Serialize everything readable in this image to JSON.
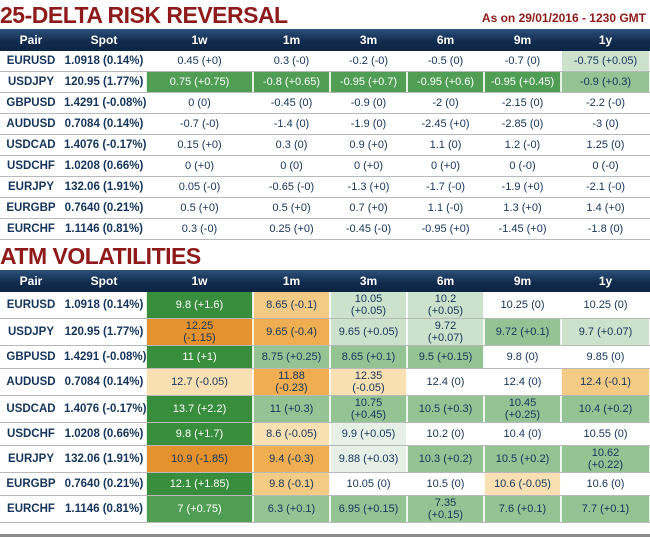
{
  "header": {
    "title_rr": "25-DELTA RISK REVERSAL",
    "title_atm": "ATM VOLATILITIES",
    "as_of": "As on 29/01/2016 - 1230 GMT"
  },
  "colors": {
    "title_red": "#8e1a1a",
    "header_navy": "#122c4f",
    "text_navy": "#15355c",
    "green_strong": "#388e3c",
    "green_medium": "#4f9e53",
    "green_soft": "#94c494",
    "green_light": "#cce2cc",
    "green_faint": "#e6f0e6",
    "orange_strong": "#e3922e",
    "orange_medium": "#efae52",
    "orange_soft": "#f3cb84",
    "orange_light": "#f8e0b2",
    "gridline_gray": "#b9b9b9"
  },
  "chart_data": [
    {
      "type": "table",
      "title": "25-DELTA RISK REVERSAL",
      "columns": [
        "Pair",
        "Spot",
        "1w",
        "1m",
        "3m",
        "6m",
        "9m",
        "1y"
      ],
      "rows": [
        {
          "pair": "EURUSD",
          "spot": "1.0918 (0.14%)",
          "cells": [
            {
              "v": "0.45 (+0)",
              "c": "w"
            },
            {
              "v": "0.3 (-0)",
              "c": "w"
            },
            {
              "v": "-0.2 (-0)",
              "c": "w"
            },
            {
              "v": "-0.5 (0)",
              "c": "w"
            },
            {
              "v": "-0.7 (0)",
              "c": "w"
            },
            {
              "v": "-0.75 (+0.05)",
              "c": "g4"
            }
          ]
        },
        {
          "pair": "USDJPY",
          "spot": "120.95 (1.77%)",
          "cells": [
            {
              "v": "0.75 (+0.75)",
              "c": "g2"
            },
            {
              "v": "-0.8 (+0.65)",
              "c": "g2"
            },
            {
              "v": "-0.95 (+0.7)",
              "c": "g2"
            },
            {
              "v": "-0.95 (+0.6)",
              "c": "g2"
            },
            {
              "v": "-0.95 (+0.45)",
              "c": "g2"
            },
            {
              "v": "-0.9 (+0.3)",
              "c": "g3"
            }
          ]
        },
        {
          "pair": "GBPUSD",
          "spot": "1.4291 (-0.08%)",
          "cells": [
            {
              "v": "0 (0)",
              "c": "w"
            },
            {
              "v": "-0.45 (0)",
              "c": "w"
            },
            {
              "v": "-0.9 (0)",
              "c": "w"
            },
            {
              "v": "-2 (0)",
              "c": "w"
            },
            {
              "v": "-2.15 (0)",
              "c": "w"
            },
            {
              "v": "-2.2 (-0)",
              "c": "w"
            }
          ]
        },
        {
          "pair": "AUDUSD",
          "spot": "0.7084 (0.14%)",
          "cells": [
            {
              "v": "-0.7 (-0)",
              "c": "w"
            },
            {
              "v": "-1.4 (0)",
              "c": "w"
            },
            {
              "v": "-1.9 (0)",
              "c": "w"
            },
            {
              "v": "-2.45 (+0)",
              "c": "w"
            },
            {
              "v": "-2.85 (0)",
              "c": "w"
            },
            {
              "v": "-3 (0)",
              "c": "w"
            }
          ]
        },
        {
          "pair": "USDCAD",
          "spot": "1.4076 (-0.17%)",
          "cells": [
            {
              "v": "0.15 (+0)",
              "c": "w"
            },
            {
              "v": "0.3 (0)",
              "c": "w"
            },
            {
              "v": "0.9 (+0)",
              "c": "w"
            },
            {
              "v": "1.1 (0)",
              "c": "w"
            },
            {
              "v": "1.2 (-0)",
              "c": "w"
            },
            {
              "v": "1.25 (0)",
              "c": "w"
            }
          ]
        },
        {
          "pair": "USDCHF",
          "spot": "1.0208 (0.66%)",
          "cells": [
            {
              "v": "0 (+0)",
              "c": "w"
            },
            {
              "v": "0 (0)",
              "c": "w"
            },
            {
              "v": "0 (+0)",
              "c": "w"
            },
            {
              "v": "0 (+0)",
              "c": "w"
            },
            {
              "v": "0 (-0)",
              "c": "w"
            },
            {
              "v": "0 (-0)",
              "c": "w"
            }
          ]
        },
        {
          "pair": "EURJPY",
          "spot": "132.06 (1.91%)",
          "cells": [
            {
              "v": "0.05 (-0)",
              "c": "w"
            },
            {
              "v": "-0.65 (-0)",
              "c": "w"
            },
            {
              "v": "-1.3 (+0)",
              "c": "w"
            },
            {
              "v": "-1.7 (-0)",
              "c": "w"
            },
            {
              "v": "-1.9 (+0)",
              "c": "w"
            },
            {
              "v": "-2.1 (-0)",
              "c": "w"
            }
          ]
        },
        {
          "pair": "EURGBP",
          "spot": "0.7640 (0.21%)",
          "cells": [
            {
              "v": "0.5 (+0)",
              "c": "w"
            },
            {
              "v": "0.5 (+0)",
              "c": "w"
            },
            {
              "v": "0.7 (+0)",
              "c": "w"
            },
            {
              "v": "1.1 (-0)",
              "c": "w"
            },
            {
              "v": "1.3 (+0)",
              "c": "w"
            },
            {
              "v": "1.4 (+0)",
              "c": "w"
            }
          ]
        },
        {
          "pair": "EURCHF",
          "spot": "1.1146 (0.81%)",
          "cells": [
            {
              "v": "0.3 (-0)",
              "c": "w"
            },
            {
              "v": "0.25 (+0)",
              "c": "w"
            },
            {
              "v": "-0.45 (-0)",
              "c": "w"
            },
            {
              "v": "-0.95 (+0)",
              "c": "w"
            },
            {
              "v": "-1.45 (+0)",
              "c": "w"
            },
            {
              "v": "-1.8 (0)",
              "c": "w"
            }
          ]
        }
      ]
    },
    {
      "type": "table",
      "title": "ATM VOLATILITIES",
      "columns": [
        "Pair",
        "Spot",
        "1w",
        "1m",
        "3m",
        "6m",
        "9m",
        "1y"
      ],
      "rows": [
        {
          "pair": "EURUSD",
          "spot": "1.0918 (0.14%)",
          "cells": [
            {
              "v": "9.8 (+1.6)",
              "c": "g1"
            },
            {
              "v": "8.65 (-0.1)",
              "c": "o3"
            },
            {
              "v": "10.05\n(+0.05)",
              "c": "g4"
            },
            {
              "v": "10.2\n(+0.05)",
              "c": "g4"
            },
            {
              "v": "10.25 (0)",
              "c": "w"
            },
            {
              "v": "10.25 (0)",
              "c": "w"
            }
          ]
        },
        {
          "pair": "USDJPY",
          "spot": "120.95 (1.77%)",
          "cells": [
            {
              "v": "12.25\n(-1.15)",
              "c": "o1"
            },
            {
              "v": "9.65 (-0.4)",
              "c": "o2"
            },
            {
              "v": "9.65 (+0.05)",
              "c": "g4"
            },
            {
              "v": "9.72\n(+0.07)",
              "c": "g4"
            },
            {
              "v": "9.72 (+0.1)",
              "c": "g3"
            },
            {
              "v": "9.7 (+0.07)",
              "c": "g4"
            }
          ]
        },
        {
          "pair": "GBPUSD",
          "spot": "1.4291 (-0.08%)",
          "cells": [
            {
              "v": "11 (+1)",
              "c": "g1"
            },
            {
              "v": "8.75 (+0.25)",
              "c": "g3"
            },
            {
              "v": "8.65 (+0.1)",
              "c": "g3"
            },
            {
              "v": "9.5 (+0.15)",
              "c": "g3"
            },
            {
              "v": "9.8 (0)",
              "c": "w"
            },
            {
              "v": "9.85 (0)",
              "c": "w"
            }
          ]
        },
        {
          "pair": "AUDUSD",
          "spot": "0.7084 (0.14%)",
          "cells": [
            {
              "v": "12.7 (-0.05)",
              "c": "o4"
            },
            {
              "v": "11.88\n(-0.23)",
              "c": "o2"
            },
            {
              "v": "12.35\n(-0.05)",
              "c": "o4"
            },
            {
              "v": "12.4 (0)",
              "c": "w"
            },
            {
              "v": "12.4 (0)",
              "c": "w"
            },
            {
              "v": "12.4 (-0.1)",
              "c": "o3"
            }
          ]
        },
        {
          "pair": "USDCAD",
          "spot": "1.4076 (-0.17%)",
          "cells": [
            {
              "v": "13.7 (+2.2)",
              "c": "g1"
            },
            {
              "v": "11 (+0.3)",
              "c": "g3"
            },
            {
              "v": "10.75\n(+0.45)",
              "c": "g3"
            },
            {
              "v": "10.5 (+0.3)",
              "c": "g3"
            },
            {
              "v": "10.45\n(+0.25)",
              "c": "g3"
            },
            {
              "v": "10.4 (+0.2)",
              "c": "g3"
            }
          ]
        },
        {
          "pair": "USDCHF",
          "spot": "1.0208 (0.66%)",
          "cells": [
            {
              "v": "9.8 (+1.7)",
              "c": "g1"
            },
            {
              "v": "8.6 (-0.05)",
              "c": "o4"
            },
            {
              "v": "9.9 (+0.05)",
              "c": "g5"
            },
            {
              "v": "10.2 (0)",
              "c": "w"
            },
            {
              "v": "10.4 (0)",
              "c": "w"
            },
            {
              "v": "10.55 (0)",
              "c": "w"
            }
          ]
        },
        {
          "pair": "EURJPY",
          "spot": "132.06 (1.91%)",
          "cells": [
            {
              "v": "10.9 (-1.85)",
              "c": "o1"
            },
            {
              "v": "9.4 (-0.3)",
              "c": "o2"
            },
            {
              "v": "9.88 (+0.03)",
              "c": "g5"
            },
            {
              "v": "10.3 (+0.2)",
              "c": "g3"
            },
            {
              "v": "10.5 (+0.2)",
              "c": "g3"
            },
            {
              "v": "10.62\n(+0.22)",
              "c": "g3"
            }
          ]
        },
        {
          "pair": "EURGBP",
          "spot": "0.7640 (0.21%)",
          "cells": [
            {
              "v": "12.1 (+1.85)",
              "c": "g1"
            },
            {
              "v": "9.8 (-0.1)",
              "c": "o3"
            },
            {
              "v": "10.05 (0)",
              "c": "w"
            },
            {
              "v": "10.5 (0)",
              "c": "w"
            },
            {
              "v": "10.6 (-0.05)",
              "c": "o4"
            },
            {
              "v": "10.6 (0)",
              "c": "w"
            }
          ]
        },
        {
          "pair": "EURCHF",
          "spot": "1.1146 (0.81%)",
          "cells": [
            {
              "v": "7 (+0.75)",
              "c": "g2"
            },
            {
              "v": "6.3 (+0.1)",
              "c": "g3"
            },
            {
              "v": "6.95 (+0.15)",
              "c": "g3"
            },
            {
              "v": "7.35\n(+0.15)",
              "c": "g3"
            },
            {
              "v": "7.6 (+0.1)",
              "c": "g3"
            },
            {
              "v": "7.7 (+0.1)",
              "c": "g3"
            }
          ]
        }
      ]
    }
  ]
}
